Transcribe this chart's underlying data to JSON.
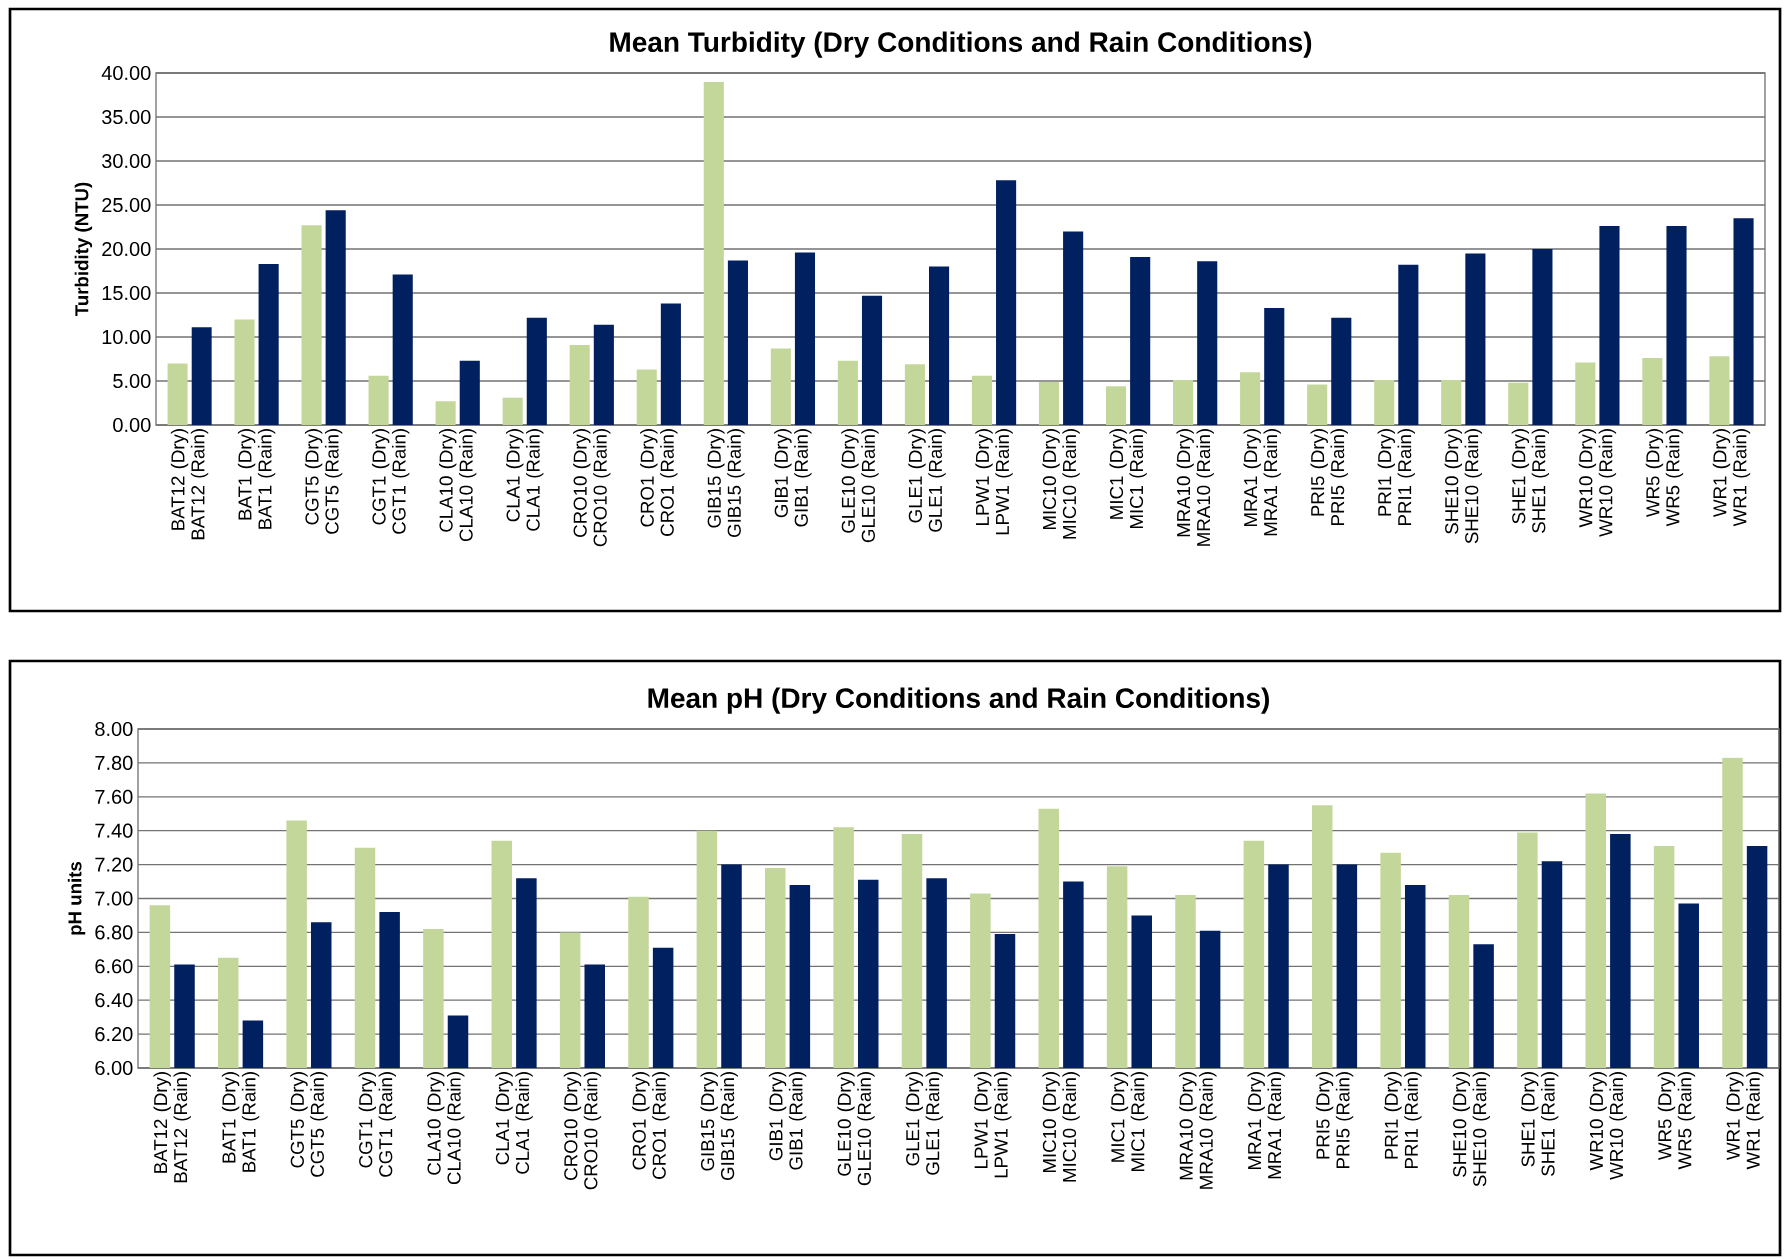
{
  "chart_data": [
    {
      "type": "bar",
      "title": "Mean Turbidity (Dry Conditions and Rain Conditions)",
      "ylabel": "Turbidity (NTU)",
      "categories": [
        "BAT12 (Dry) BAT12 (Rain)",
        "BAT1 (Dry) BAT1 (Rain)",
        "CGT5 (Dry) CGT5 (Rain)",
        "CGT1 (Dry) CGT1 (Rain)",
        "CLA10 (Dry) CLA10 (Rain)",
        "CLA1 (Dry) CLA1 (Rain)",
        "CRO10 (Dry) CRO10 (Rain)",
        "CRO1 (Dry) CRO1 (Rain)",
        "GIB15 (Dry) GIB15 (Rain)",
        "GIB1 (Dry) GIB1 (Rain)",
        "GLE10 (Dry) GLE10 (Rain)",
        "GLE1 (Dry) GLE1 (Rain)",
        "LPW1 (Dry) LPW1 (Rain)",
        "MIC10 (Dry) MIC10 (Rain)",
        "MIC1 (Dry) MIC1 (Rain)",
        "MRA10 (Dry) MRA10 (Rain)",
        "MRA1 (Dry) MRA1 (Rain)",
        "PRI5 (Dry) PRI5 (Rain)",
        "PRI1 (Dry) PRI1 (Rain)",
        "SHE10 (Dry) SHE10 (Rain)",
        "SHE1 (Dry) SHE1 (Rain)",
        "WR10 (Dry) WR10 (Rain)",
        "WR5 (Dry) WR5 (Rain)",
        "WR1 (Dry) WR1 (Rain)"
      ],
      "series": [
        {
          "color": "#c4d79b",
          "values": [
            7.0,
            12.0,
            22.7,
            5.6,
            2.7,
            3.1,
            9.1,
            6.3,
            39.0,
            8.7,
            7.3,
            6.9,
            5.6,
            4.9,
            4.4,
            5.1,
            6.0,
            4.6,
            5.1,
            5.1,
            4.8,
            7.1,
            7.6,
            7.8
          ]
        },
        {
          "color": "#002060",
          "values": [
            11.1,
            18.3,
            24.4,
            17.1,
            7.3,
            12.2,
            11.4,
            13.8,
            18.7,
            19.6,
            14.7,
            18.0,
            27.8,
            22.0,
            19.1,
            18.6,
            13.3,
            12.2,
            18.2,
            19.5,
            20.0,
            22.6,
            22.6,
            23.5
          ]
        }
      ],
      "ylim": [
        0,
        40
      ],
      "yticks": [
        {
          "value": 0,
          "label": "0.00"
        },
        {
          "value": 5,
          "label": "5.00"
        },
        {
          "value": 10,
          "label": "10.00"
        },
        {
          "value": 15,
          "label": "15.00"
        },
        {
          "value": 20,
          "label": "20.00"
        },
        {
          "value": 25,
          "label": "25.00"
        },
        {
          "value": 30,
          "label": "30.00"
        },
        {
          "value": 35,
          "label": "35.00"
        },
        {
          "value": 40,
          "label": "40.00"
        }
      ],
      "grid": "y"
    },
    {
      "type": "bar",
      "title": "Mean pH (Dry Conditions and Rain Conditions)",
      "ylabel": "pH units",
      "categories": [
        "BAT12 (Dry) BAT12 (Rain)",
        "BAT1 (Dry) BAT1 (Rain)",
        "CGT5 (Dry) CGT5 (Rain)",
        "CGT1 (Dry) CGT1 (Rain)",
        "CLA10 (Dry) CLA10 (Rain)",
        "CLA1 (Dry) CLA1 (Rain)",
        "CRO10 (Dry) CRO10 (Rain)",
        "CRO1 (Dry) CRO1 (Rain)",
        "GIB15 (Dry) GIB15 (Rain)",
        "GIB1 (Dry) GIB1 (Rain)",
        "GLE10 (Dry) GLE10 (Rain)",
        "GLE1 (Dry) GLE1 (Rain)",
        "LPW1 (Dry) LPW1 (Rain)",
        "MIC10 (Dry) MIC10 (Rain)",
        "MIC1 (Dry) MIC1 (Rain)",
        "MRA10 (Dry) MRA10 (Rain)",
        "MRA1 (Dry) MRA1 (Rain)",
        "PRI5 (Dry) PRI5 (Rain)",
        "PRI1 (Dry) PRI1 (Rain)",
        "SHE10 (Dry) SHE10 (Rain)",
        "SHE1 (Dry) SHE1 (Rain)",
        "WR10 (Dry) WR10 (Rain)",
        "WR5 (Dry) WR5 (Rain)",
        "WR1 (Dry) WR1 (Rain)"
      ],
      "series": [
        {
          "color": "#c4d79b",
          "values": [
            6.96,
            6.65,
            7.46,
            7.3,
            6.82,
            7.34,
            6.8,
            7.01,
            7.4,
            7.18,
            7.42,
            7.38,
            7.03,
            7.53,
            7.19,
            7.02,
            7.34,
            7.55,
            7.27,
            7.02,
            7.39,
            7.62,
            7.31,
            7.83
          ]
        },
        {
          "color": "#002060",
          "values": [
            6.61,
            6.28,
            6.86,
            6.92,
            6.31,
            7.12,
            6.61,
            6.71,
            7.2,
            7.08,
            7.11,
            7.12,
            6.79,
            7.1,
            6.9,
            6.81,
            7.2,
            7.2,
            7.08,
            6.73,
            7.22,
            7.38,
            6.97,
            7.31
          ]
        }
      ],
      "ylim": [
        6,
        8
      ],
      "yticks": [
        {
          "value": 6,
          "label": "6.00"
        },
        {
          "value": 6.2,
          "label": "6.20"
        },
        {
          "value": 6.4,
          "label": "6.40"
        },
        {
          "value": 6.6,
          "label": "6.60"
        },
        {
          "value": 6.8,
          "label": "6.80"
        },
        {
          "value": 7,
          "label": "7.00"
        },
        {
          "value": 7.2,
          "label": "7.20"
        },
        {
          "value": 7.4,
          "label": "7.40"
        },
        {
          "value": 7.6,
          "label": "7.60"
        },
        {
          "value": 7.8,
          "label": "7.80"
        },
        {
          "value": 8,
          "label": "8.00"
        }
      ],
      "grid": "y"
    }
  ]
}
